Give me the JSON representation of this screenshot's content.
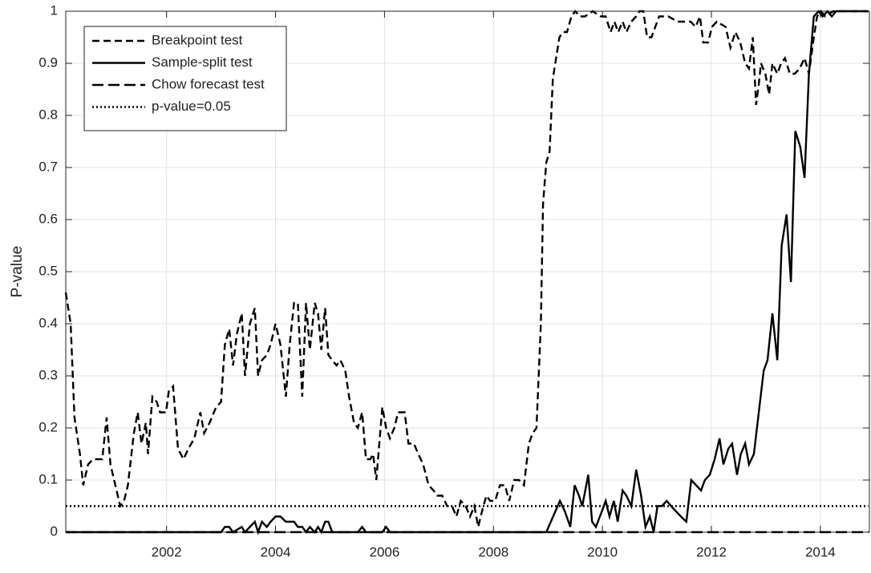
{
  "chart_data": {
    "type": "line",
    "y_label": "P-value",
    "xlim": [
      2000.15,
      2014.9
    ],
    "ylim": [
      0,
      1
    ],
    "xticks": [
      2002,
      2004,
      2006,
      2008,
      2010,
      2012,
      2014
    ],
    "yticks": [
      0,
      0.1,
      0.2,
      0.3,
      0.4,
      0.5,
      0.6,
      0.7,
      0.8,
      0.9,
      1
    ],
    "grid": true,
    "legend_position": "upper-left",
    "series": [
      {
        "name": "Breakpoint test",
        "color": "#000000",
        "style": "dashed",
        "x": [
          2000.15,
          2000.24,
          2000.31,
          2000.41,
          2000.47,
          2000.56,
          2000.65,
          2000.82,
          2000.9,
          2000.97,
          2001.15,
          2001.22,
          2001.29,
          2001.4,
          2001.47,
          2001.54,
          2001.62,
          2001.66,
          2001.74,
          2001.82,
          2001.88,
          2001.99,
          2002.04,
          2002.12,
          2002.21,
          2002.31,
          2002.4,
          2002.51,
          2002.62,
          2002.69,
          2002.79,
          2002.91,
          2003.0,
          2003.07,
          2003.15,
          2003.22,
          2003.29,
          2003.38,
          2003.44,
          2003.53,
          2003.62,
          2003.68,
          2003.75,
          2003.84,
          2003.91,
          2004.0,
          2004.09,
          2004.19,
          2004.26,
          2004.34,
          2004.41,
          2004.49,
          2004.56,
          2004.63,
          2004.72,
          2004.78,
          2004.84,
          2004.91,
          2004.97,
          2005.04,
          2005.12,
          2005.19,
          2005.28,
          2005.35,
          2005.44,
          2005.51,
          2005.59,
          2005.66,
          2005.74,
          2005.79,
          2005.85,
          2005.96,
          2006.03,
          2006.1,
          2006.18,
          2006.25,
          2006.37,
          2006.44,
          2006.54,
          2006.62,
          2006.71,
          2006.81,
          2006.9,
          2006.97,
          2007.06,
          2007.15,
          2007.24,
          2007.32,
          2007.4,
          2007.49,
          2007.57,
          2007.65,
          2007.72,
          2007.79,
          2007.87,
          2007.94,
          2008.03,
          2008.12,
          2008.21,
          2008.29,
          2008.38,
          2008.47,
          2008.56,
          2008.65,
          2008.72,
          2008.79,
          2008.87,
          2008.91,
          2008.97,
          2009.03,
          2009.09,
          2009.15,
          2009.21,
          2009.28,
          2009.35,
          2009.43,
          2009.5,
          2009.59,
          2009.68,
          2009.82,
          2009.97,
          2010.06,
          2010.15,
          2010.22,
          2010.29,
          2010.37,
          2010.44,
          2010.53,
          2010.62,
          2010.68,
          2010.75,
          2010.82,
          2010.9,
          2010.97,
          2011.04,
          2011.21,
          2011.38,
          2011.53,
          2011.62,
          2011.71,
          2011.79,
          2011.85,
          2011.94,
          2012.01,
          2012.1,
          2012.26,
          2012.35,
          2012.44,
          2012.53,
          2012.62,
          2012.69,
          2012.76,
          2012.82,
          2012.87,
          2012.91,
          2012.99,
          2013.06,
          2013.12,
          2013.21,
          2013.28,
          2013.35,
          2013.44,
          2013.53,
          2013.62,
          2013.71,
          2013.79,
          2013.88,
          2013.94,
          2014.01,
          2014.09,
          2014.24,
          2014.88
        ],
        "values": [
          0.46,
          0.4,
          0.22,
          0.15,
          0.09,
          0.13,
          0.14,
          0.14,
          0.22,
          0.13,
          0.05,
          0.06,
          0.09,
          0.19,
          0.23,
          0.17,
          0.21,
          0.15,
          0.26,
          0.25,
          0.23,
          0.23,
          0.27,
          0.28,
          0.16,
          0.14,
          0.16,
          0.18,
          0.23,
          0.19,
          0.21,
          0.24,
          0.25,
          0.36,
          0.39,
          0.32,
          0.38,
          0.42,
          0.3,
          0.4,
          0.43,
          0.3,
          0.33,
          0.34,
          0.36,
          0.4,
          0.36,
          0.26,
          0.36,
          0.44,
          0.44,
          0.26,
          0.44,
          0.35,
          0.44,
          0.42,
          0.35,
          0.43,
          0.34,
          0.33,
          0.32,
          0.33,
          0.31,
          0.26,
          0.21,
          0.2,
          0.23,
          0.14,
          0.14,
          0.15,
          0.1,
          0.24,
          0.2,
          0.18,
          0.2,
          0.23,
          0.23,
          0.17,
          0.17,
          0.15,
          0.13,
          0.09,
          0.08,
          0.07,
          0.07,
          0.05,
          0.05,
          0.03,
          0.06,
          0.05,
          0.03,
          0.05,
          0.01,
          0.04,
          0.07,
          0.06,
          0.06,
          0.09,
          0.09,
          0.06,
          0.1,
          0.1,
          0.09,
          0.17,
          0.19,
          0.2,
          0.4,
          0.63,
          0.71,
          0.73,
          0.87,
          0.91,
          0.95,
          0.96,
          0.96,
          0.99,
          1.0,
          0.99,
          0.99,
          1.0,
          0.99,
          0.99,
          0.96,
          0.98,
          0.96,
          0.98,
          0.96,
          0.98,
          0.99,
          1.0,
          1.0,
          0.95,
          0.95,
          0.97,
          0.99,
          0.99,
          0.98,
          0.98,
          0.98,
          0.97,
          0.99,
          0.94,
          0.94,
          0.97,
          0.98,
          0.97,
          0.93,
          0.96,
          0.94,
          0.9,
          0.89,
          0.95,
          0.82,
          0.86,
          0.9,
          0.88,
          0.84,
          0.9,
          0.88,
          0.9,
          0.91,
          0.88,
          0.88,
          0.89,
          0.91,
          0.88,
          0.95,
          0.99,
          1.0,
          0.99,
          1.0,
          1.0
        ]
      },
      {
        "name": "Sample-split test",
        "color": "#000000",
        "style": "solid",
        "x": [
          2000.15,
          2003.0,
          2003.07,
          2003.15,
          2003.22,
          2003.38,
          2003.44,
          2003.62,
          2003.68,
          2003.75,
          2003.84,
          2003.91,
          2004.0,
          2004.09,
          2004.19,
          2004.34,
          2004.41,
          2004.49,
          2004.56,
          2004.63,
          2004.72,
          2004.78,
          2004.84,
          2004.91,
          2004.97,
          2005.04,
          2005.51,
          2005.59,
          2005.66,
          2005.96,
          2006.03,
          2006.1,
          2008.97,
          2009.22,
          2009.31,
          2009.41,
          2009.49,
          2009.57,
          2009.63,
          2009.74,
          2009.81,
          2009.88,
          2009.99,
          2010.06,
          2010.13,
          2010.21,
          2010.28,
          2010.37,
          2010.44,
          2010.53,
          2010.62,
          2010.71,
          2010.79,
          2010.87,
          2010.94,
          2011.01,
          2011.09,
          2011.18,
          2011.26,
          2011.44,
          2011.54,
          2011.63,
          2011.72,
          2011.81,
          2011.88,
          2011.97,
          2012.06,
          2012.15,
          2012.22,
          2012.31,
          2012.38,
          2012.47,
          2012.54,
          2012.62,
          2012.69,
          2012.78,
          2012.87,
          2012.96,
          2013.03,
          2013.12,
          2013.21,
          2013.29,
          2013.38,
          2013.46,
          2013.54,
          2013.63,
          2013.71,
          2013.79,
          2013.88,
          2013.97,
          2014.04,
          2014.13,
          2014.21,
          2014.29,
          2014.88
        ],
        "values": [
          0,
          0,
          0.01,
          0.01,
          0,
          0.01,
          0,
          0.02,
          0,
          0.02,
          0.01,
          0.02,
          0.03,
          0.03,
          0.02,
          0.02,
          0.01,
          0.01,
          0,
          0.01,
          0,
          0.01,
          0,
          0.02,
          0.02,
          0,
          0,
          0.01,
          0,
          0,
          0.01,
          0,
          0,
          0.06,
          0.04,
          0.01,
          0.09,
          0.07,
          0.05,
          0.11,
          0.02,
          0.01,
          0.04,
          0.06,
          0.03,
          0.06,
          0.02,
          0.08,
          0.07,
          0.05,
          0.12,
          0.07,
          0.01,
          0.03,
          0,
          0.05,
          0.05,
          0.06,
          0.05,
          0.03,
          0.02,
          0.1,
          0.09,
          0.08,
          0.1,
          0.11,
          0.14,
          0.18,
          0.13,
          0.16,
          0.17,
          0.11,
          0.15,
          0.17,
          0.13,
          0.15,
          0.23,
          0.31,
          0.33,
          0.42,
          0.33,
          0.55,
          0.61,
          0.48,
          0.77,
          0.74,
          0.68,
          0.88,
          0.99,
          1.0,
          0.99,
          1.0,
          0.99,
          1.0,
          1.0
        ]
      },
      {
        "name": "Chow forecast test",
        "color": "#000000",
        "style": "longdash",
        "x": [
          2000.15,
          2014.88
        ],
        "values": [
          0,
          0
        ]
      },
      {
        "name": "p-value=0.05",
        "color": "#000000",
        "style": "dotted",
        "x": [
          2000.15,
          2014.88
        ],
        "values": [
          0.05,
          0.05
        ]
      }
    ]
  }
}
